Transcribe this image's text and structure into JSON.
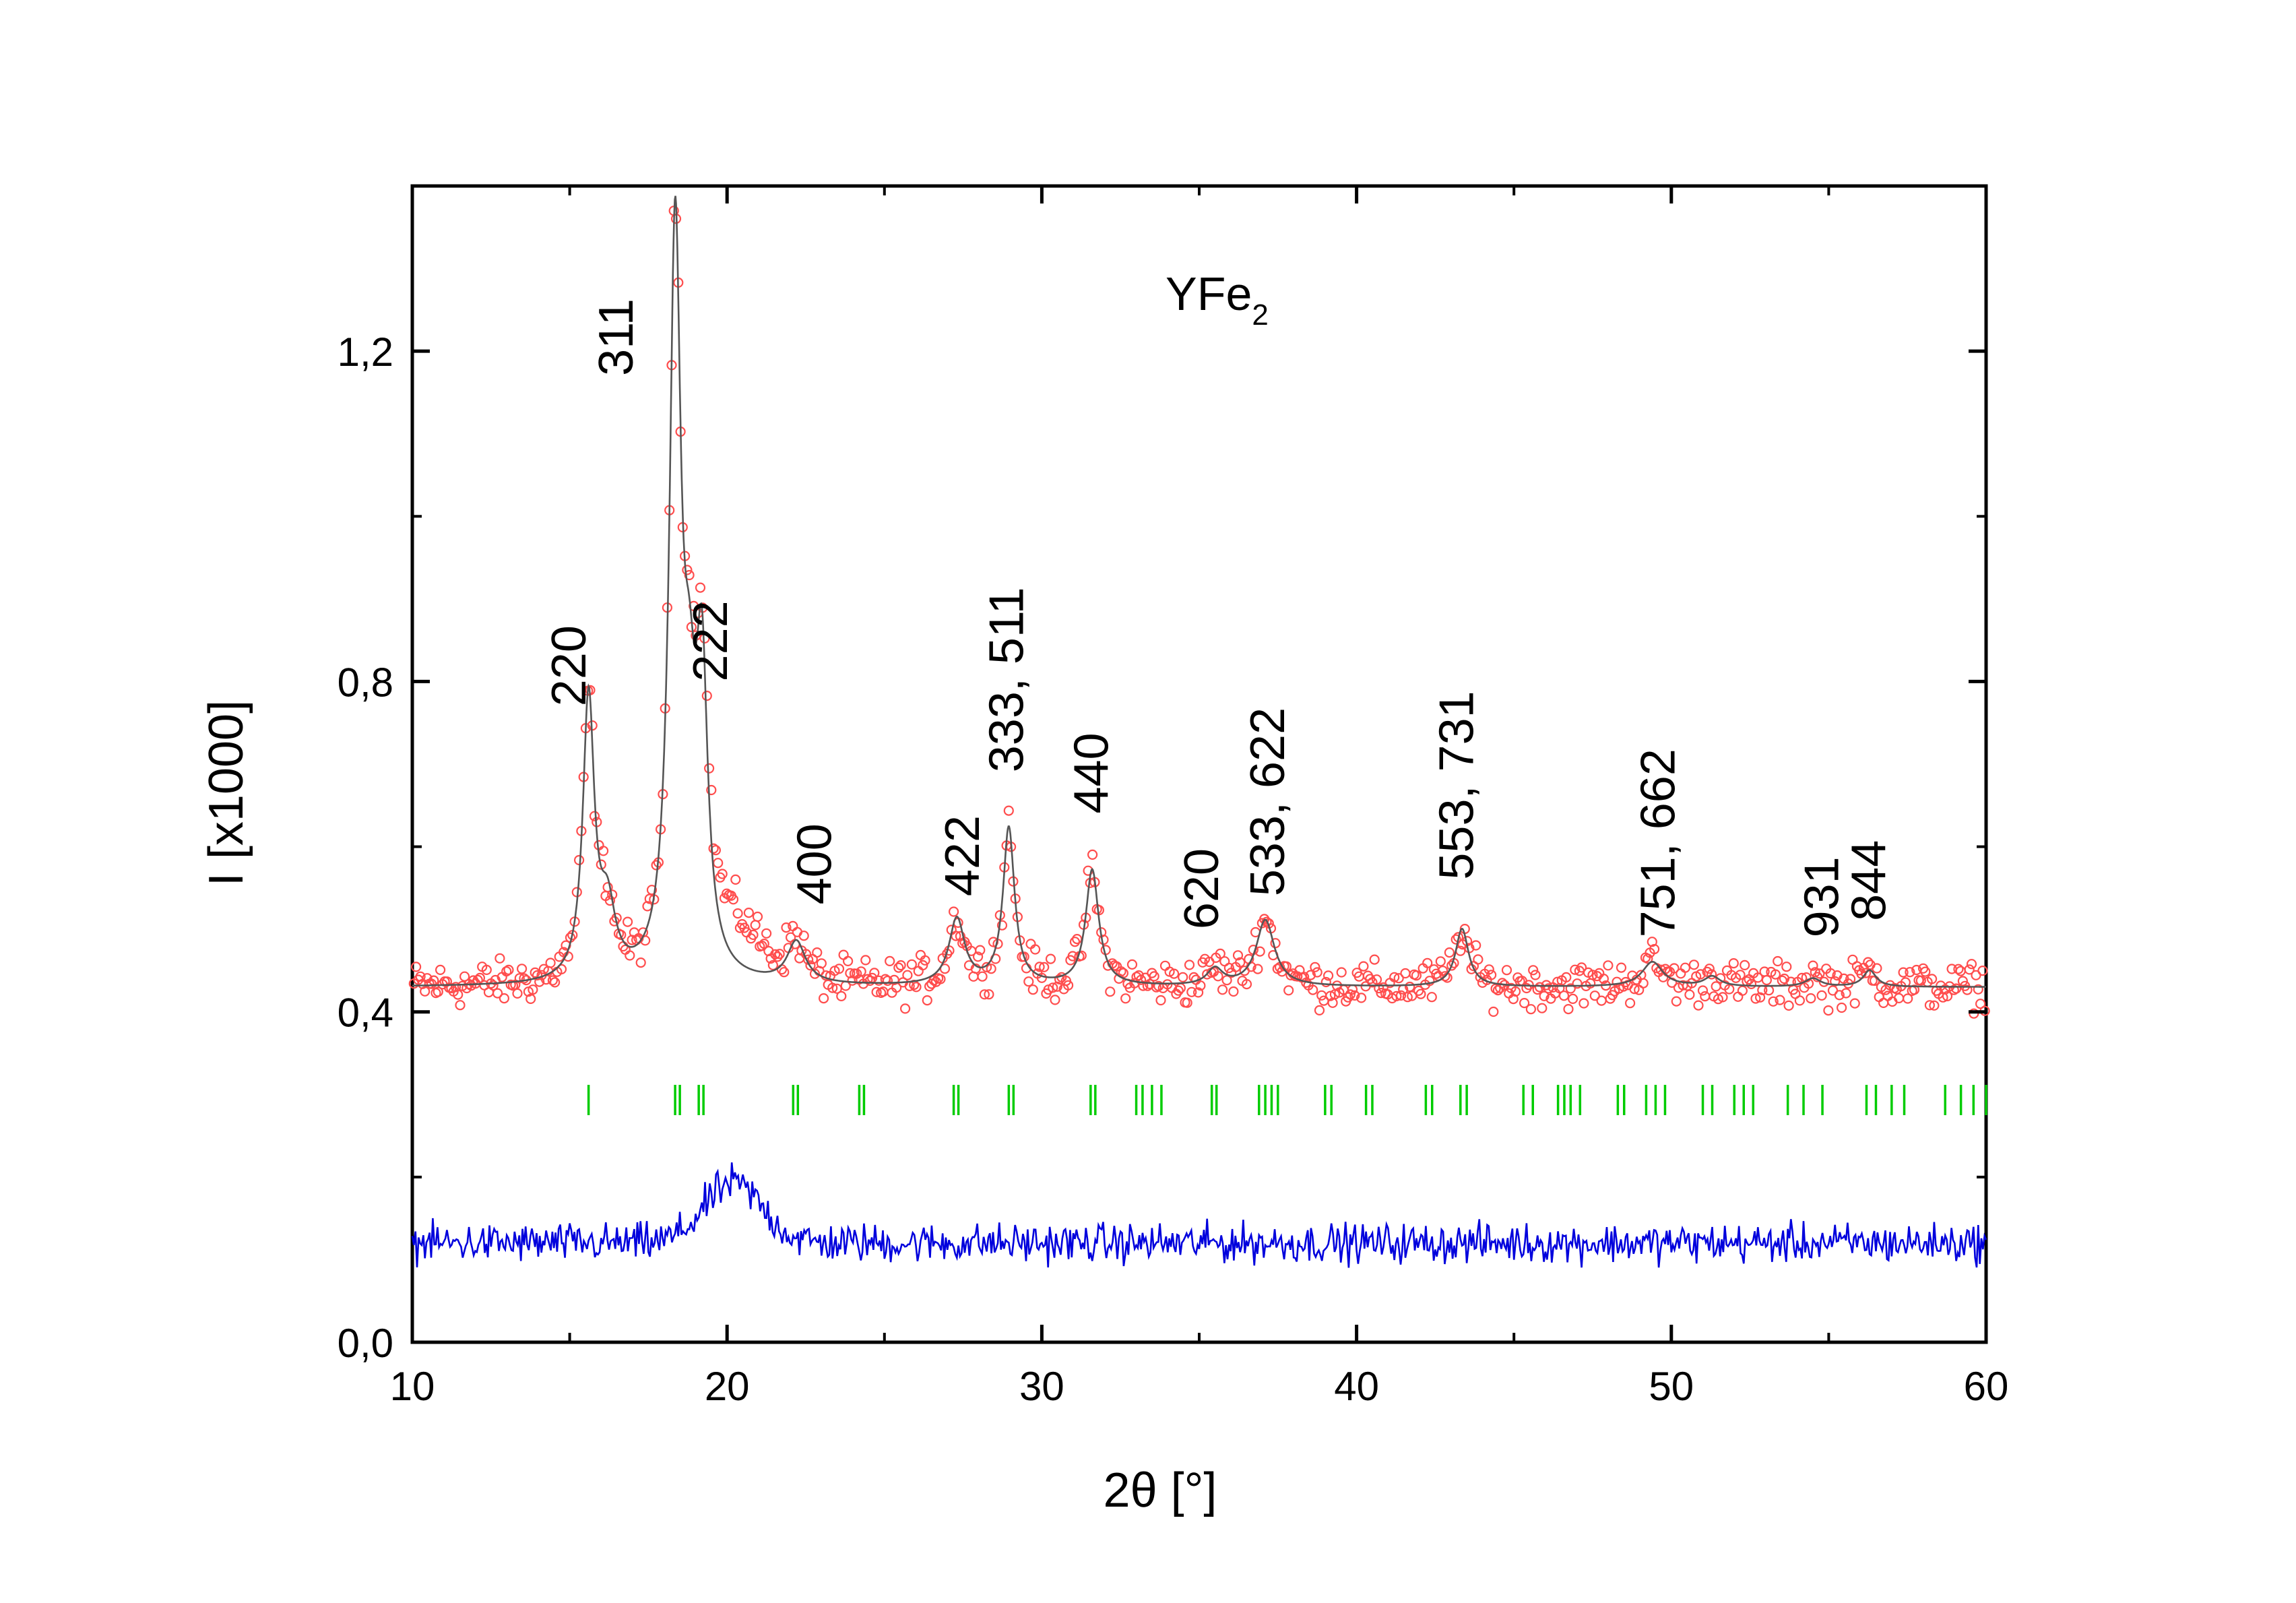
{
  "chart_data": {
    "type": "scatter",
    "title": "YFe",
    "title_subscript": "2",
    "xlabel": "2θ [°]",
    "ylabel": "I [x1000]",
    "xlim": [
      10,
      60
    ],
    "ylim": [
      0,
      1.4
    ],
    "x_ticks": [
      10,
      20,
      30,
      40,
      50,
      60
    ],
    "x_tick_labels": [
      "10",
      "20",
      "30",
      "40",
      "50",
      "60"
    ],
    "y_ticks": [
      0.0,
      0.4,
      0.8,
      1.2
    ],
    "y_tick_labels": [
      "0,0",
      "0,4",
      "0,8",
      "1,2"
    ],
    "x_minor_ticks": [
      15,
      25,
      35,
      45,
      55
    ],
    "y_minor_ticks": [
      0.2,
      0.6,
      1.0
    ],
    "grid": false,
    "legend": "none",
    "colors": {
      "observed": "#ff4d4d",
      "calculated": "#555555",
      "bragg": "#00cc00",
      "difference": "#0000dd"
    },
    "background": 0.43,
    "peaks": [
      {
        "x": 15.6,
        "h": 0.34,
        "w": 0.22
      },
      {
        "x": 16.2,
        "h": 0.08,
        "w": 0.3
      },
      {
        "x": 18.35,
        "h": 0.88,
        "w": 0.22
      },
      {
        "x": 18.8,
        "h": 0.22,
        "w": 0.25
      },
      {
        "x": 19.2,
        "h": 0.34,
        "w": 0.22
      },
      {
        "x": 22.2,
        "h": 0.05,
        "w": 0.35
      },
      {
        "x": 27.3,
        "h": 0.08,
        "w": 0.3
      },
      {
        "x": 28.95,
        "h": 0.19,
        "w": 0.22
      },
      {
        "x": 31.6,
        "h": 0.14,
        "w": 0.25
      },
      {
        "x": 35.5,
        "h": 0.02,
        "w": 0.3
      },
      {
        "x": 37.1,
        "h": 0.08,
        "w": 0.35
      },
      {
        "x": 43.35,
        "h": 0.07,
        "w": 0.25
      },
      {
        "x": 49.4,
        "h": 0.03,
        "w": 0.4
      },
      {
        "x": 51.3,
        "h": 0.012,
        "w": 0.3
      },
      {
        "x": 54.5,
        "h": 0.01,
        "w": 0.3
      },
      {
        "x": 56.3,
        "h": 0.02,
        "w": 0.25
      }
    ],
    "hump": {
      "x": 20.2,
      "h": 0.06,
      "w": 1.3
    },
    "bragg_positions": [
      15.6,
      18.35,
      18.5,
      19.1,
      19.25,
      22.1,
      22.25,
      24.2,
      24.35,
      27.2,
      27.35,
      28.95,
      29.1,
      31.55,
      31.7,
      33.0,
      33.2,
      33.5,
      33.8,
      35.4,
      35.55,
      36.9,
      37.1,
      37.3,
      37.5,
      39.0,
      39.2,
      40.3,
      40.5,
      42.2,
      42.4,
      43.3,
      43.5,
      45.3,
      45.6,
      46.4,
      46.6,
      46.8,
      47.1,
      48.3,
      48.5,
      49.2,
      49.5,
      49.8,
      51.0,
      51.3,
      52.0,
      52.3,
      52.6,
      53.7,
      54.2,
      54.8,
      56.2,
      56.5,
      57.0,
      57.4,
      58.7,
      59.2,
      59.6,
      60.0
    ],
    "annotations": [
      {
        "text": "220",
        "x": 15.5,
        "y": 0.77
      },
      {
        "text": "311",
        "x": 17.0,
        "y": 1.17
      },
      {
        "text": "222",
        "x": 20.0,
        "y": 0.8
      },
      {
        "text": "400",
        "x": 23.3,
        "y": 0.53
      },
      {
        "text": "422",
        "x": 28.0,
        "y": 0.54
      },
      {
        "text": "333, 511",
        "x": 29.4,
        "y": 0.69
      },
      {
        "text": "440",
        "x": 32.1,
        "y": 0.64
      },
      {
        "text": "620",
        "x": 35.6,
        "y": 0.5
      },
      {
        "text": "533, 622",
        "x": 37.7,
        "y": 0.54
      },
      {
        "text": "553, 731",
        "x": 43.7,
        "y": 0.56
      },
      {
        "text": "751, 662",
        "x": 50.1,
        "y": 0.49
      },
      {
        "text": "931",
        "x": 55.3,
        "y": 0.49
      },
      {
        "text": "844",
        "x": 56.8,
        "y": 0.51
      }
    ]
  }
}
